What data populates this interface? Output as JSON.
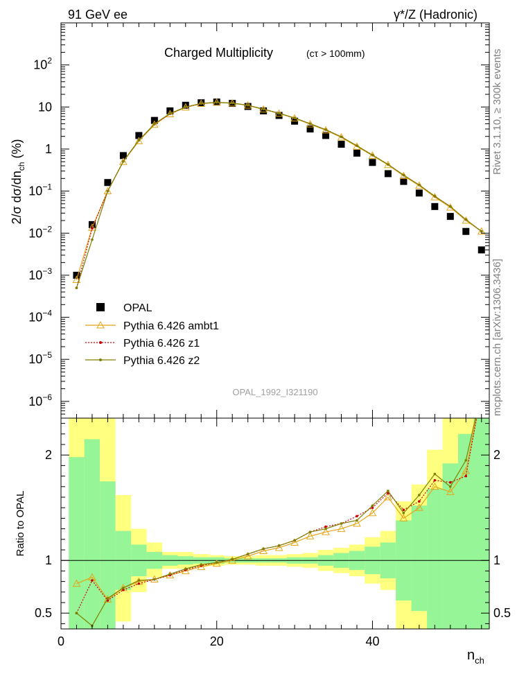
{
  "header": {
    "process_left": "91 GeV ee",
    "process_right": "γ*/Z (Hadronic)",
    "side_rivet": "Rivet 3.1.10, ≥ 300k events",
    "side_mcplots": "mcplots.cern.ch [arXiv:1306.3436]",
    "analysis_id": "OPAL_1992_I321190"
  },
  "chart_data": [
    {
      "type": "scatter",
      "title": "Charged Multiplicity",
      "subtitle": "(cτ > 100mm)",
      "xlabel": "n",
      "xlabel_sub": "ch",
      "ylabel": "2/σ dσ/dn",
      "ylabel_sub": "ch",
      "ylabel_suffix": "(%)",
      "yscale": "log",
      "ylim": [
        4e-07,
        1000
      ],
      "xlim": [
        0,
        55
      ],
      "yticks": [
        {
          "v": 1e-06,
          "base": "10",
          "exp": "−6"
        },
        {
          "v": 1e-05,
          "base": "10",
          "exp": "−5"
        },
        {
          "v": 0.0001,
          "base": "10",
          "exp": "−4"
        },
        {
          "v": 0.001,
          "base": "10",
          "exp": "−3"
        },
        {
          "v": 0.01,
          "base": "10",
          "exp": "−2"
        },
        {
          "v": 0.1,
          "base": "10",
          "exp": "−1"
        },
        {
          "v": 1,
          "base": "1",
          "exp": ""
        },
        {
          "v": 10,
          "base": "10",
          "exp": ""
        },
        {
          "v": 100,
          "base": "10",
          "exp": "2"
        }
      ],
      "x": [
        2,
        4,
        6,
        8,
        10,
        12,
        14,
        16,
        18,
        20,
        22,
        24,
        26,
        28,
        30,
        32,
        34,
        36,
        38,
        40,
        42,
        44,
        46,
        48,
        50,
        52,
        54
      ],
      "series": [
        {
          "name": "OPAL",
          "color": "#000000",
          "marker": "square",
          "values": [
            0.001,
            0.016,
            0.16,
            0.7,
            2.1,
            4.8,
            8.1,
            11.0,
            12.6,
            13.1,
            12.2,
            10.3,
            8.1,
            6.3,
            4.6,
            3.0,
            2.1,
            1.3,
            0.8,
            0.48,
            0.26,
            0.17,
            0.09,
            0.043,
            0.025,
            0.011,
            0.004
          ]
        },
        {
          "name": "Pythia 6.426 ambt1",
          "color": "#e5a517",
          "marker": "triangle",
          "values": [
            0.00078,
            0.0135,
            0.1,
            0.5,
            1.55,
            3.8,
            6.8,
            9.8,
            12.0,
            12.8,
            12.3,
            10.9,
            8.8,
            7.0,
            5.4,
            3.9,
            2.8,
            1.9,
            1.15,
            0.7,
            0.42,
            0.23,
            0.135,
            0.072,
            0.041,
            0.02,
            0.011
          ]
        },
        {
          "name": "Pythia 6.426 z1",
          "color": "#cc0000",
          "marker": "dot",
          "dash": "2,2",
          "values": [
            0.0005,
            0.013,
            0.1,
            0.51,
            1.62,
            3.9,
            6.9,
            9.9,
            12.1,
            12.9,
            12.4,
            11.0,
            8.9,
            7.1,
            5.5,
            4.0,
            2.9,
            1.95,
            1.2,
            0.72,
            0.43,
            0.24,
            0.14,
            0.075,
            0.043,
            0.021,
            0.011
          ]
        },
        {
          "name": "Pythia 6.426 z2",
          "color": "#7f7f00",
          "marker": "dot",
          "values": [
            0.0005,
            0.007,
            0.1,
            0.51,
            1.62,
            3.95,
            7.0,
            10.0,
            12.2,
            12.9,
            12.4,
            11.0,
            8.9,
            7.1,
            5.5,
            4.0,
            2.9,
            1.95,
            1.2,
            0.72,
            0.43,
            0.24,
            0.14,
            0.076,
            0.043,
            0.021,
            0.011
          ]
        }
      ]
    },
    {
      "type": "line",
      "ylabel": "Ratio to OPAL",
      "ylim": [
        0.35,
        2.35
      ],
      "xlim": [
        0,
        55
      ],
      "xticks": [
        0,
        20,
        40
      ],
      "yticks": [
        0.5,
        1,
        2
      ],
      "bands": [
        {
          "x0": 1,
          "x1": 3,
          "y1_lo": 0.35,
          "y1_hi": 2.35,
          "y2_lo": 0.35,
          "y2_hi": 1.98
        },
        {
          "x0": 3,
          "x1": 5,
          "y1_lo": 0.35,
          "y1_hi": 2.35,
          "y2_lo": 0.35,
          "y2_hi": 2.15
        },
        {
          "x0": 5,
          "x1": 7,
          "y1_lo": 0.35,
          "y1_hi": 2.35,
          "y2_lo": 0.35,
          "y2_hi": 1.75
        },
        {
          "x0": 7,
          "x1": 9,
          "y1_lo": 0.42,
          "y1_hi": 1.62,
          "y2_lo": 0.72,
          "y2_hi": 1.28
        },
        {
          "x0": 9,
          "x1": 11,
          "y1_lo": 0.7,
          "y1_hi": 1.3,
          "y2_lo": 0.85,
          "y2_hi": 1.15
        },
        {
          "x0": 11,
          "x1": 13,
          "y1_lo": 0.84,
          "y1_hi": 1.17,
          "y2_lo": 0.92,
          "y2_hi": 1.08
        },
        {
          "x0": 13,
          "x1": 15,
          "y1_lo": 0.92,
          "y1_hi": 1.08,
          "y2_lo": 0.95,
          "y2_hi": 1.05
        },
        {
          "x0": 15,
          "x1": 17,
          "y1_lo": 0.92,
          "y1_hi": 1.08,
          "y2_lo": 0.96,
          "y2_hi": 1.04
        },
        {
          "x0": 17,
          "x1": 19,
          "y1_lo": 0.94,
          "y1_hi": 1.06,
          "y2_lo": 0.97,
          "y2_hi": 1.03
        },
        {
          "x0": 19,
          "x1": 21,
          "y1_lo": 0.95,
          "y1_hi": 1.05,
          "y2_lo": 0.97,
          "y2_hi": 1.03
        },
        {
          "x0": 21,
          "x1": 23,
          "y1_lo": 0.96,
          "y1_hi": 1.04,
          "y2_lo": 0.98,
          "y2_hi": 1.02
        },
        {
          "x0": 23,
          "x1": 25,
          "y1_lo": 0.96,
          "y1_hi": 1.04,
          "y2_lo": 0.98,
          "y2_hi": 1.02
        },
        {
          "x0": 25,
          "x1": 27,
          "y1_lo": 0.95,
          "y1_hi": 1.05,
          "y2_lo": 0.98,
          "y2_hi": 1.02
        },
        {
          "x0": 27,
          "x1": 29,
          "y1_lo": 0.95,
          "y1_hi": 1.05,
          "y2_lo": 0.98,
          "y2_hi": 1.02
        },
        {
          "x0": 29,
          "x1": 31,
          "y1_lo": 0.94,
          "y1_hi": 1.06,
          "y2_lo": 0.97,
          "y2_hi": 1.03
        },
        {
          "x0": 31,
          "x1": 33,
          "y1_lo": 0.93,
          "y1_hi": 1.07,
          "y2_lo": 0.97,
          "y2_hi": 1.03
        },
        {
          "x0": 33,
          "x1": 35,
          "y1_lo": 0.9,
          "y1_hi": 1.1,
          "y2_lo": 0.95,
          "y2_hi": 1.05
        },
        {
          "x0": 35,
          "x1": 37,
          "y1_lo": 0.88,
          "y1_hi": 1.12,
          "y2_lo": 0.93,
          "y2_hi": 1.07
        },
        {
          "x0": 37,
          "x1": 39,
          "y1_lo": 0.85,
          "y1_hi": 1.15,
          "y2_lo": 0.91,
          "y2_hi": 1.09
        },
        {
          "x0": 39,
          "x1": 41,
          "y1_lo": 0.78,
          "y1_hi": 1.22,
          "y2_lo": 0.87,
          "y2_hi": 1.13
        },
        {
          "x0": 41,
          "x1": 43,
          "y1_lo": 0.72,
          "y1_hi": 1.28,
          "y2_lo": 0.83,
          "y2_hi": 1.17
        },
        {
          "x0": 43,
          "x1": 45,
          "y1_lo": 0.35,
          "y1_hi": 1.56,
          "y2_lo": 0.62,
          "y2_hi": 1.38
        },
        {
          "x0": 45,
          "x1": 47,
          "y1_lo": 0.35,
          "y1_hi": 1.72,
          "y2_lo": 0.52,
          "y2_hi": 1.52
        },
        {
          "x0": 47,
          "x1": 49,
          "y1_lo": 0.35,
          "y1_hi": 2.05,
          "y2_lo": 0.35,
          "y2_hi": 1.68
        },
        {
          "x0": 49,
          "x1": 51,
          "y1_lo": 0.35,
          "y1_hi": 2.35,
          "y2_lo": 0.35,
          "y2_hi": 1.92
        },
        {
          "x0": 51,
          "x1": 53,
          "y1_lo": 0.35,
          "y1_hi": 2.35,
          "y2_lo": 0.35,
          "y2_hi": 2.2
        },
        {
          "x0": 53,
          "x1": 55,
          "y1_lo": 0.35,
          "y1_hi": 2.35,
          "y2_lo": 0.35,
          "y2_hi": 2.35
        }
      ],
      "x": [
        2,
        4,
        6,
        8,
        10,
        12,
        14,
        16,
        18,
        20,
        22,
        24,
        26,
        28,
        30,
        32,
        34,
        36,
        38,
        40,
        42,
        44,
        46,
        48,
        50,
        52,
        54
      ],
      "series": [
        {
          "name": "Pythia 6.426 ambt1",
          "color": "#e5a517",
          "marker": "triangle",
          "values": [
            0.78,
            0.84,
            0.63,
            0.74,
            0.8,
            0.82,
            0.86,
            0.9,
            0.94,
            0.97,
            1.0,
            1.04,
            1.09,
            1.12,
            1.17,
            1.23,
            1.27,
            1.3,
            1.35,
            1.45,
            1.6,
            1.4,
            1.5,
            1.7,
            1.65,
            1.85,
            2.6
          ]
        },
        {
          "name": "Pythia 6.426 z1",
          "color": "#cc0000",
          "marker": "dot",
          "dash": "2,2",
          "values": [
            0.5,
            0.81,
            0.62,
            0.72,
            0.78,
            0.82,
            0.86,
            0.91,
            0.95,
            0.98,
            1.01,
            1.06,
            1.11,
            1.14,
            1.19,
            1.27,
            1.32,
            1.35,
            1.42,
            1.5,
            1.64,
            1.48,
            1.56,
            1.76,
            1.74,
            1.8,
            2.6
          ]
        },
        {
          "name": "Pythia 6.426 z2",
          "color": "#7f7f00",
          "marker": "dot",
          "values": [
            0.5,
            0.38,
            0.64,
            0.74,
            0.81,
            0.82,
            0.87,
            0.92,
            0.96,
            0.98,
            1.01,
            1.06,
            1.11,
            1.14,
            1.19,
            1.27,
            1.3,
            1.35,
            1.38,
            1.52,
            1.66,
            1.45,
            1.62,
            1.82,
            1.7,
            1.95,
            2.6
          ]
        }
      ]
    }
  ]
}
